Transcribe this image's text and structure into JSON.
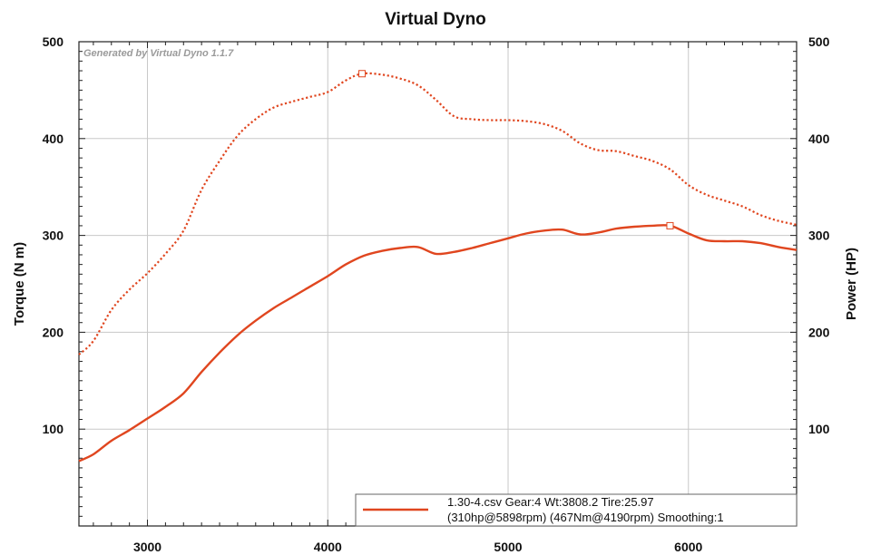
{
  "chart_data": {
    "type": "line",
    "title": "Virtual Dyno",
    "watermark": "Generated by Virtual Dyno 1.1.7",
    "xlabel": "",
    "ylabel_left": "Torque (N m)",
    "ylabel_right": "Power (HP)",
    "xlim": [
      2620,
      6600
    ],
    "ylim_left": [
      0,
      500
    ],
    "ylim_right": [
      0,
      500
    ],
    "x_ticks": [
      3000,
      4000,
      5000,
      6000
    ],
    "y_ticks": [
      100,
      200,
      300,
      400,
      500
    ],
    "grid": true,
    "line_color": "#e0461f",
    "series": [
      {
        "style": "solid",
        "axis": "left",
        "x": [
          2620,
          2700,
          2800,
          2900,
          3000,
          3100,
          3200,
          3300,
          3400,
          3500,
          3600,
          3700,
          3800,
          3900,
          4000,
          4100,
          4200,
          4300,
          4400,
          4500,
          4600,
          4700,
          4800,
          4900,
          5000,
          5100,
          5200,
          5300,
          5400,
          5500,
          5600,
          5700,
          5800,
          5900,
          6000,
          6100,
          6200,
          6300,
          6400,
          6500,
          6600
        ],
        "y": [
          67,
          74,
          88,
          99,
          111,
          123,
          137,
          159,
          179,
          197,
          212,
          225,
          236,
          247,
          258,
          270,
          279,
          284,
          287,
          288,
          281,
          283,
          287,
          292,
          297,
          302,
          305,
          306,
          301,
          303,
          307,
          309,
          310,
          310,
          302,
          295,
          294,
          294,
          292,
          288,
          285
        ],
        "peak_marker": {
          "x": 5898,
          "y": 310
        }
      },
      {
        "style": "dotted",
        "axis": "left",
        "x": [
          2620,
          2700,
          2800,
          2900,
          3000,
          3100,
          3200,
          3300,
          3400,
          3500,
          3600,
          3700,
          3800,
          3900,
          4000,
          4100,
          4190,
          4300,
          4400,
          4500,
          4600,
          4700,
          4800,
          4900,
          5000,
          5100,
          5200,
          5300,
          5400,
          5500,
          5600,
          5700,
          5800,
          5900,
          6000,
          6100,
          6200,
          6300,
          6400,
          6500,
          6600
        ],
        "y": [
          177,
          191,
          223,
          244,
          261,
          281,
          305,
          347,
          377,
          403,
          420,
          432,
          438,
          443,
          448,
          460,
          467,
          466,
          462,
          455,
          440,
          423,
          420,
          419,
          419,
          418,
          415,
          408,
          395,
          388,
          387,
          382,
          377,
          368,
          352,
          342,
          336,
          330,
          321,
          315,
          311
        ],
        "peak_marker": {
          "x": 4190,
          "y": 467
        }
      }
    ],
    "legend": {
      "position": "bottom-right",
      "line1": "1.30-4.csv Gear:4 Wt:3808.2 Tire:25.97",
      "line2": "(310hp@5898rpm) (467Nm@4190rpm) Smoothing:1"
    }
  }
}
